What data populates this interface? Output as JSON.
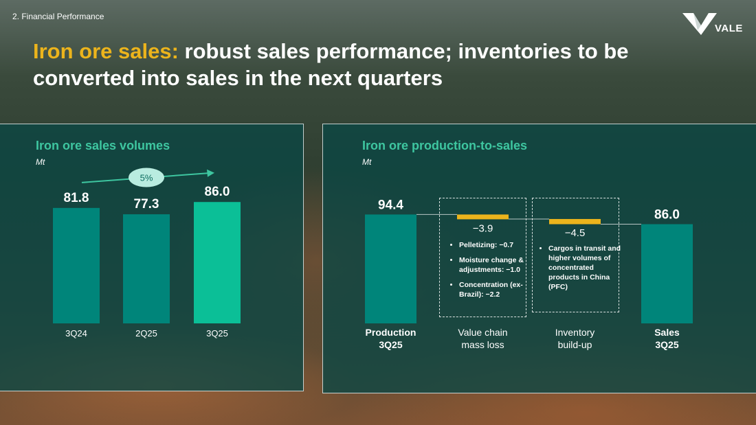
{
  "header": {
    "section": "2. Financial Performance",
    "title_accent": "Iron ore sales:",
    "title_rest": " robust sales performance; inventories to be converted into sales in the next quarters",
    "logo_text": "VALE"
  },
  "colors": {
    "accent_yellow": "#ecb41c",
    "teal_bar": "#00857a",
    "teal_highlight": "#0bbf97",
    "title_teal": "#3ec6a0"
  },
  "chart_data": [
    {
      "type": "bar",
      "title": "Iron ore sales volumes",
      "unit": "Mt",
      "categories": [
        "3Q24",
        "2Q25",
        "3Q25"
      ],
      "values": [
        81.8,
        77.3,
        86.0
      ],
      "value_labels": [
        "81.8",
        "77.3",
        "86.0"
      ],
      "highlight_index": 2,
      "annotation": "5%",
      "ylim": [
        0,
        90
      ]
    },
    {
      "type": "waterfall",
      "title": "Iron ore production-to-sales",
      "unit": "Mt",
      "categories": [
        {
          "line1": "Production",
          "line2": "3Q25",
          "bold": true
        },
        {
          "line1": "Value chain",
          "line2": "mass loss",
          "bold": false
        },
        {
          "line1": "Inventory",
          "line2": "build-up",
          "bold": false
        },
        {
          "line1": "Sales",
          "line2": "3Q25",
          "bold": true
        }
      ],
      "values": [
        94.4,
        -3.9,
        -4.5,
        86.0
      ],
      "value_labels": [
        "94.4",
        "−3.9",
        "−4.5",
        "86.0"
      ],
      "ylim": [
        0,
        100
      ],
      "notes": [
        [
          "Pelletizing: −0.7",
          "Moisture change & adjustments: −1.0",
          "Concentration (ex-Brazil): −2.2"
        ],
        [
          "Cargos in transit and higher volumes of concentrated products in China (PFC)"
        ]
      ]
    }
  ]
}
